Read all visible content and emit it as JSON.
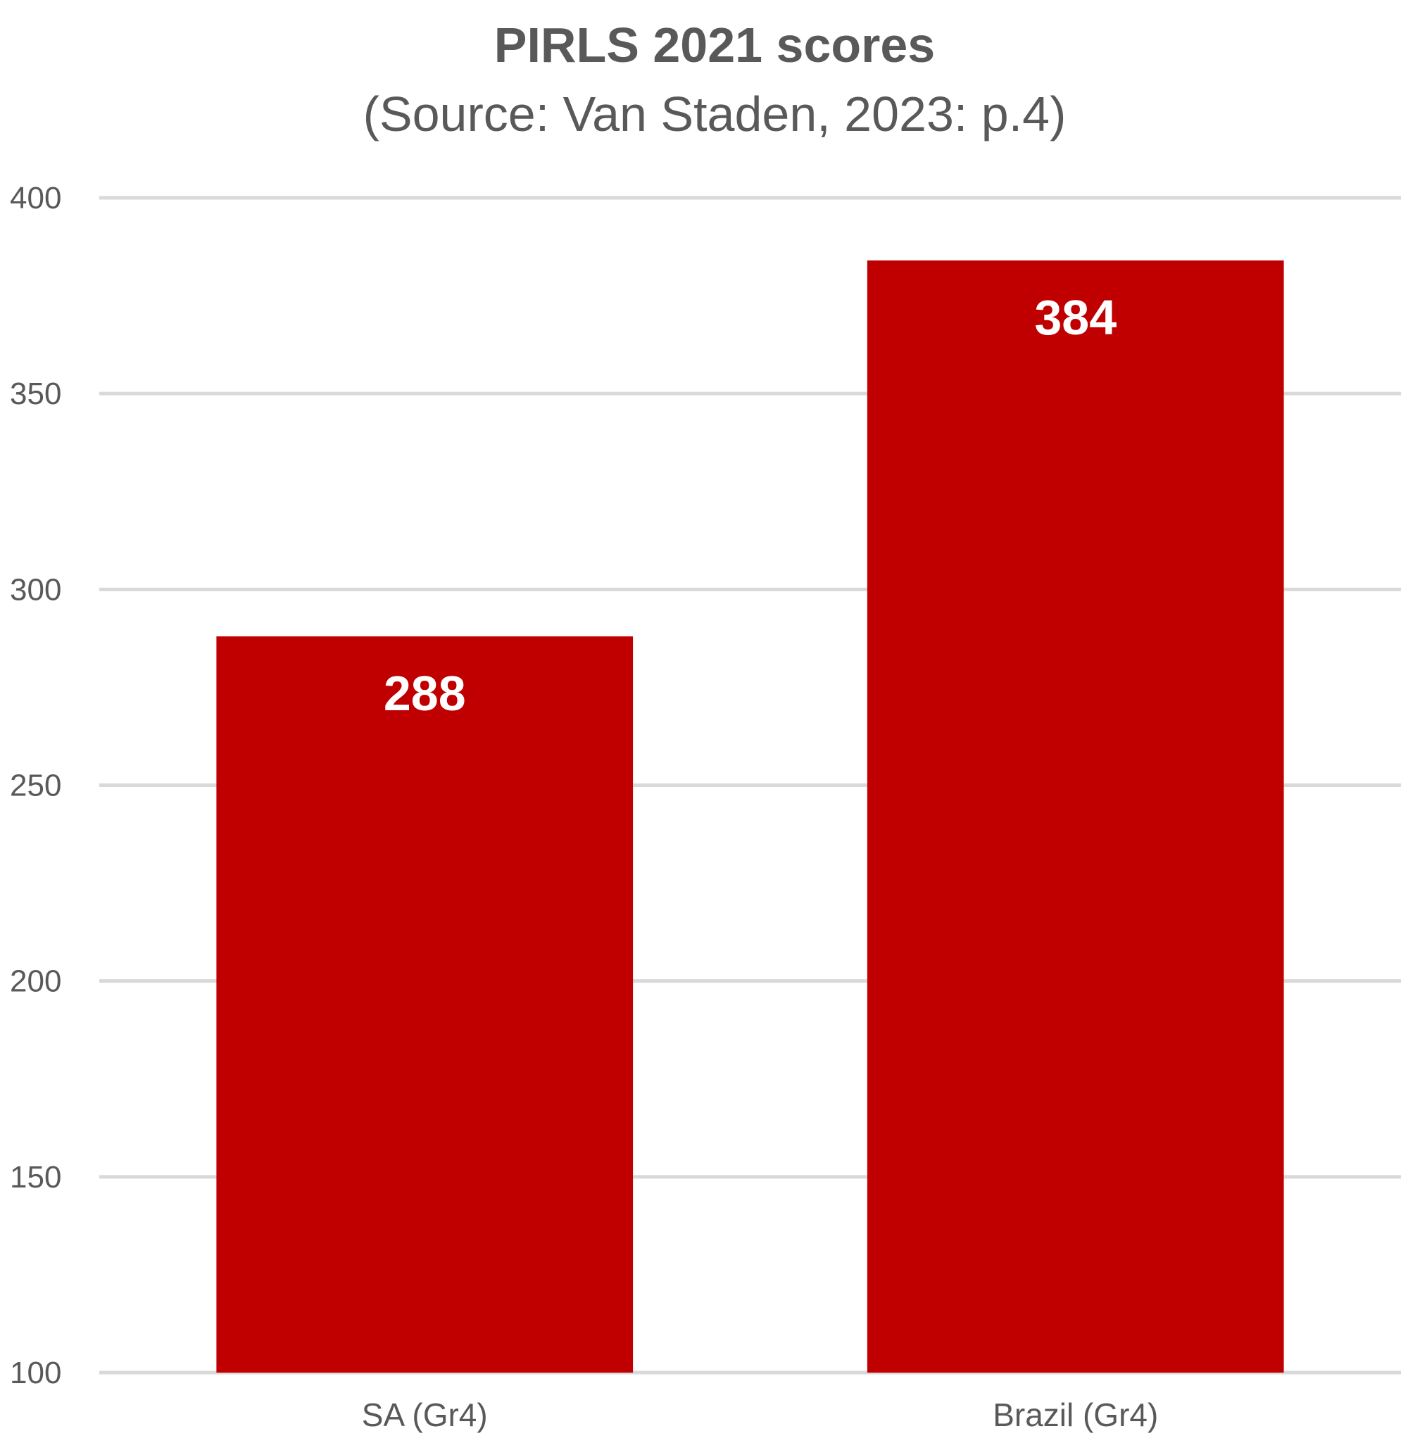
{
  "chart_data": {
    "type": "bar",
    "title": "PIRLS 2021 scores",
    "subtitle": "(Source: Van Staden, 2023: p.4)",
    "categories": [
      "SA (Gr4)",
      "Brazil (Gr4)"
    ],
    "values": [
      288,
      384
    ],
    "data_labels": [
      "288",
      "384"
    ],
    "xlabel": "",
    "ylabel": "",
    "ylim": [
      100,
      400
    ],
    "yticks": [
      100,
      150,
      200,
      250,
      300,
      350,
      400
    ],
    "ytick_labels": [
      "100",
      "150",
      "200",
      "250",
      "300",
      "350",
      "400"
    ],
    "grid": true,
    "legend": "none",
    "colors": {
      "bar": "#C00000",
      "grid": "#D9D9D9",
      "title_text": "#595959",
      "axis_text": "#595959",
      "data_label_text": "#FFFFFF",
      "background": "#FFFFFF"
    }
  }
}
